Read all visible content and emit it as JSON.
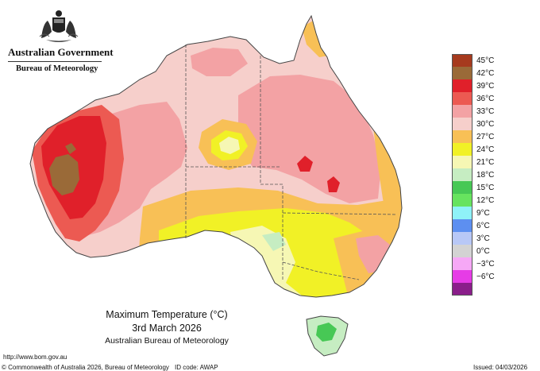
{
  "agency": {
    "government": "Australian Government",
    "bureau": "Bureau of Meteorology",
    "crest_icon": "commonwealth-coat-of-arms-icon"
  },
  "map": {
    "title": "Maximum Temperature (°C)",
    "date": "3rd March 2026",
    "source": "Australian Bureau of Meteorology",
    "region": "Australia",
    "state_boundaries": true
  },
  "legend": {
    "unit": "°C",
    "items": [
      {
        "label": "45°C",
        "color": "#a63a1e"
      },
      {
        "label": "42°C",
        "color": "#9a6a38"
      },
      {
        "label": "39°C",
        "color": "#e0202a"
      },
      {
        "label": "36°C",
        "color": "#ec5a52"
      },
      {
        "label": "33°C",
        "color": "#f3a2a4"
      },
      {
        "label": "30°C",
        "color": "#f6cfcb"
      },
      {
        "label": "27°C",
        "color": "#f8c056"
      },
      {
        "label": "24°C",
        "color": "#f1f126"
      },
      {
        "label": "21°C",
        "color": "#f6f7b4"
      },
      {
        "label": "18°C",
        "color": "#c6edc2"
      },
      {
        "label": "15°C",
        "color": "#47c855"
      },
      {
        "label": "12°C",
        "color": "#67e35f"
      },
      {
        "label": "9°C",
        "color": "#8ff2f8"
      },
      {
        "label": "6°C",
        "color": "#5d8ff0"
      },
      {
        "label": "3°C",
        "color": "#b8c8f6"
      },
      {
        "label": "0°C",
        "color": "#d3d3d3"
      },
      {
        "label": "−3°C",
        "color": "#f6a8f6"
      },
      {
        "label": "−6°C",
        "color": "#e63ce6"
      },
      {
        "label": "",
        "color": "#8a1e8a"
      }
    ]
  },
  "footer": {
    "url": "http://www.bom.gov.au",
    "copyright": "© Commonwealth of Australia 2026, Bureau of Meteorology",
    "id_code": "ID code: AWAP",
    "issued": "Issued: 04/03/2026"
  }
}
